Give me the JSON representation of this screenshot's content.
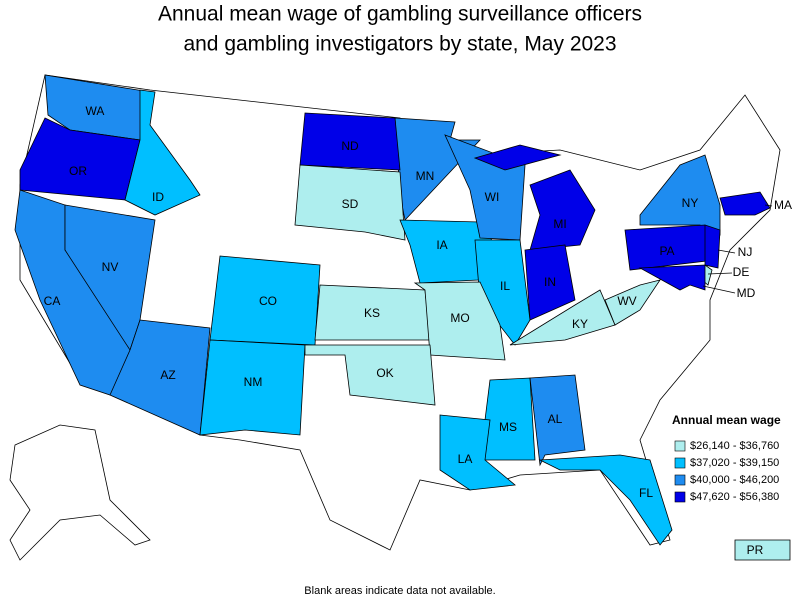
{
  "title": [
    "Annual mean wage of gambling surveillance officers",
    "and gambling investigators by state, May 2023"
  ],
  "legend": {
    "title": "Annual mean wage",
    "classes": [
      {
        "label": "$26,140 - $36,760",
        "color": "#aeeeee"
      },
      {
        "label": "$37,020 - $39,150",
        "color": "#00bfff"
      },
      {
        "label": "$40,000 - $46,200",
        "color": "#1e8cf0"
      },
      {
        "label": "$47,620 - $56,380",
        "color": "#0000e8"
      }
    ]
  },
  "states": [
    {
      "label": "WA",
      "color": "#1e8cf0"
    },
    {
      "label": "OR",
      "color": "#0000e8"
    },
    {
      "label": "CA",
      "color": "#1e8cf0"
    },
    {
      "label": "NV",
      "color": "#1e8cf0"
    },
    {
      "label": "ID",
      "color": "#00bfff"
    },
    {
      "label": "AZ",
      "color": "#1e8cf0"
    },
    {
      "label": "MN",
      "color": "#1e8cf0"
    },
    {
      "label": "ND",
      "color": "#0000e8"
    },
    {
      "label": "SD",
      "color": "#aeeeee"
    },
    {
      "label": "IA",
      "color": "#00bfff"
    },
    {
      "label": "WI",
      "color": "#1e8cf0"
    },
    {
      "label": "MI",
      "color": "#0000e8"
    },
    {
      "label": "IL",
      "color": "#00bfff"
    },
    {
      "label": "IN",
      "color": "#0000e8"
    },
    {
      "label": "CO",
      "color": "#00bfff"
    },
    {
      "label": "NM",
      "color": "#00bfff"
    },
    {
      "label": "KS",
      "color": "#aeeeee"
    },
    {
      "label": "MO",
      "color": "#aeeeee"
    },
    {
      "label": "OK",
      "color": "#aeeeee"
    },
    {
      "label": "KY",
      "color": "#aeeeee"
    },
    {
      "label": "WV",
      "color": "#aeeeee"
    },
    {
      "label": "MS",
      "color": "#00bfff"
    },
    {
      "label": "AL",
      "color": "#1e8cf0"
    },
    {
      "label": "LA",
      "color": "#00bfff"
    },
    {
      "label": "FL",
      "color": "#00bfff"
    },
    {
      "label": "NY",
      "color": "#1e8cf0"
    },
    {
      "label": "PA",
      "color": "#0000e8"
    },
    {
      "label": "NJ",
      "color": "#0000e8"
    },
    {
      "label": "DE",
      "color": "#aeeeee"
    },
    {
      "label": "MD",
      "color": "#0000e8"
    },
    {
      "label": "MA",
      "color": "#0000e8"
    },
    {
      "label": "PR",
      "color": "#aeeeee"
    }
  ],
  "footnote": "Blank areas indicate data not available."
}
